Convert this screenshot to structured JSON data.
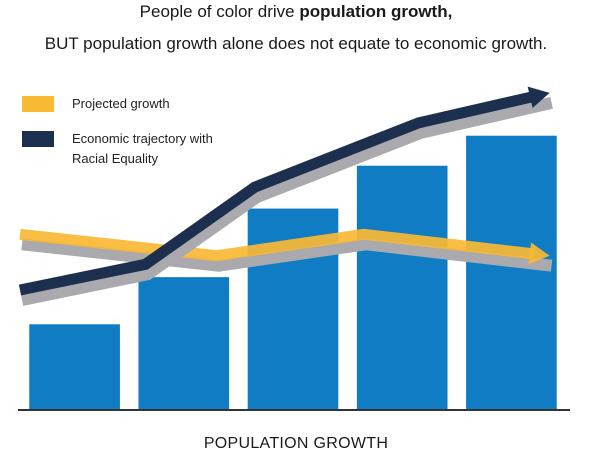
{
  "header": {
    "line1_prefix": "People of color drive ",
    "line1_bold": "population growth,",
    "line2": "BUT population growth alone does not equate to economic growth."
  },
  "colors": {
    "bar": "#0f7cc4",
    "projected": "#f8b933",
    "economic": "#1c2f4f",
    "shadow": "#a9a9ae",
    "axis": "#333333"
  },
  "chart_data": {
    "type": "bar",
    "categories": [
      "",
      "",
      "",
      "",
      ""
    ],
    "values": [
      1.0,
      1.55,
      2.35,
      2.85,
      3.2
    ],
    "xlabel": "POPULATION GROWTH",
    "ylabel": "",
    "ylim": [
      0,
      3.5
    ],
    "grid": false,
    "legend": "top-left",
    "series": [
      {
        "name": "Projected growth",
        "type": "line",
        "x": [
          0,
          1.8,
          3.15,
          4.85
        ],
        "values": [
          2.05,
          1.8,
          2.05,
          1.8
        ]
      },
      {
        "name": "Economic trajectory with Racial Equality",
        "type": "line",
        "x": [
          0,
          1.15,
          2.15,
          3.65,
          4.85
        ],
        "values": [
          1.4,
          1.7,
          2.6,
          3.35,
          3.7
        ]
      }
    ]
  },
  "legend": {
    "projected_label": "Projected growth",
    "economic_label_line1": "Economic trajectory with",
    "economic_label_line2": "Racial Equality"
  }
}
